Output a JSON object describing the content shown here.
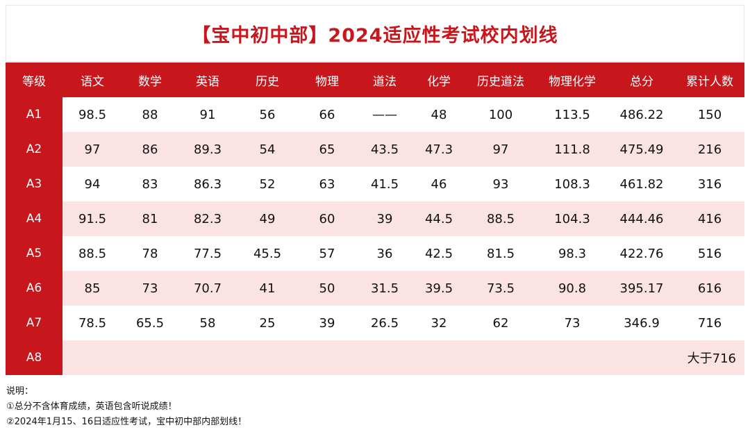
{
  "title": "【宝中初中部】2024适应性考试校内划线",
  "table": {
    "headers": [
      "等级",
      "语文",
      "数学",
      "英语",
      "历史",
      "物理",
      "道法",
      "化学",
      "历史道法",
      "物理化学",
      "总分",
      "累计人数"
    ],
    "rows": [
      [
        "A1",
        "98.5",
        "88",
        "91",
        "56",
        "66",
        "——",
        "48",
        "100",
        "113.5",
        "486.22",
        "150"
      ],
      [
        "A2",
        "97",
        "86",
        "89.3",
        "54",
        "65",
        "43.5",
        "47.3",
        "97",
        "111.8",
        "475.49",
        "216"
      ],
      [
        "A3",
        "94",
        "83",
        "86.3",
        "52",
        "63",
        "41.5",
        "46",
        "93",
        "108.3",
        "461.82",
        "316"
      ],
      [
        "A4",
        "91.5",
        "81",
        "82.3",
        "49",
        "60",
        "39",
        "44.5",
        "88.5",
        "104.3",
        "444.46",
        "416"
      ],
      [
        "A5",
        "88.5",
        "78",
        "77.5",
        "45.5",
        "57",
        "36",
        "42.5",
        "81.5",
        "98.3",
        "422.76",
        "516"
      ],
      [
        "A6",
        "85",
        "73",
        "70.7",
        "41",
        "50",
        "31.5",
        "39.5",
        "73.5",
        "90.8",
        "395.17",
        "616"
      ],
      [
        "A7",
        "78.5",
        "65.5",
        "58",
        "25",
        "39",
        "26.5",
        "32",
        "62",
        "73",
        "346.9",
        "716"
      ]
    ],
    "last_row": {
      "grade": "A8",
      "cumulative": "大于716"
    }
  },
  "notes": {
    "heading": "说明：",
    "items": [
      "①总分不含体育成绩，英语包含听说成绩！",
      "②2024年1月15、16日适应性考试，宝中初中部内部划线！"
    ]
  }
}
